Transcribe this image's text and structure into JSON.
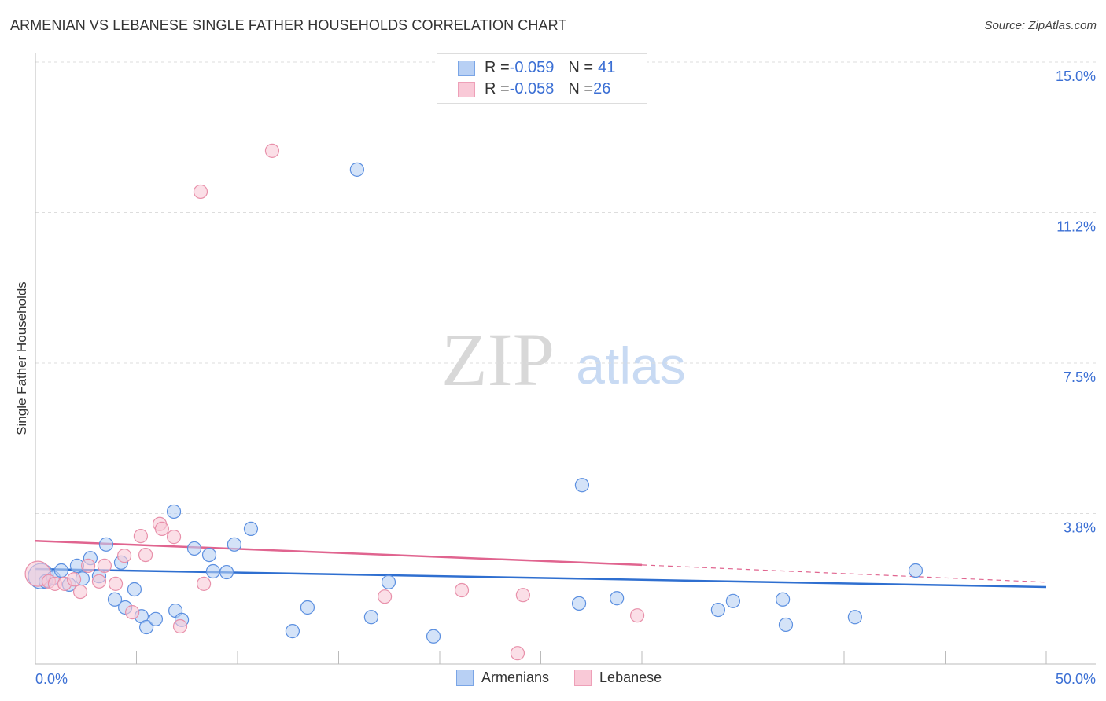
{
  "title": "ARMENIAN VS LEBANESE SINGLE FATHER HOUSEHOLDS CORRELATION CHART",
  "source": "Source: ZipAtlas.com",
  "watermark": {
    "zip": "ZIP",
    "atlas": "atlas"
  },
  "legend": [
    {
      "r_label": "R = ",
      "r": "-0.059",
      "n_label": "N = ",
      "n": "41"
    },
    {
      "r_label": "R = ",
      "r": "-0.058",
      "n_label": "N = ",
      "n": "26"
    }
  ],
  "chart_data": {
    "type": "scatter",
    "title": "ARMENIAN VS LEBANESE SINGLE FATHER HOUSEHOLDS CORRELATION CHART",
    "xlabel": "",
    "ylabel": "Single Father Households",
    "xlim": [
      0,
      50
    ],
    "ylim": [
      0,
      15
    ],
    "x_tick_labels": [
      "0.0%",
      "50.0%"
    ],
    "y_ticks": [
      15,
      11.25,
      7.5,
      3.75
    ],
    "y_tick_labels": [
      "15.0%",
      "11.2%",
      "7.5%",
      "3.8%"
    ],
    "grid": true,
    "series": [
      {
        "name": "Armenians",
        "color": "#5b8fe0",
        "fill": "#b8d0f4",
        "trend": [
          [
            0,
            2.37
          ],
          [
            50,
            1.92
          ]
        ],
        "points": [
          [
            0.27,
            2.19
          ],
          [
            0.51,
            2.06
          ],
          [
            0.89,
            2.15
          ],
          [
            1.28,
            2.33
          ],
          [
            1.67,
            1.98
          ],
          [
            2.06,
            2.45
          ],
          [
            2.33,
            2.13
          ],
          [
            2.72,
            2.64
          ],
          [
            3.15,
            2.19
          ],
          [
            3.5,
            2.98
          ],
          [
            3.93,
            1.61
          ],
          [
            4.24,
            2.53
          ],
          [
            4.44,
            1.41
          ],
          [
            4.9,
            1.86
          ],
          [
            5.25,
            1.19
          ],
          [
            5.49,
            0.92
          ],
          [
            5.95,
            1.12
          ],
          [
            6.85,
            3.8
          ],
          [
            6.93,
            1.33
          ],
          [
            7.24,
            1.1
          ],
          [
            7.86,
            2.88
          ],
          [
            8.6,
            2.72
          ],
          [
            8.79,
            2.31
          ],
          [
            9.46,
            2.29
          ],
          [
            9.84,
            2.98
          ],
          [
            10.66,
            3.37
          ],
          [
            12.72,
            0.82
          ],
          [
            13.46,
            1.41
          ],
          [
            15.91,
            12.32
          ],
          [
            16.61,
            1.17
          ],
          [
            17.47,
            2.04
          ],
          [
            19.69,
            0.69
          ],
          [
            26.89,
            1.51
          ],
          [
            27.04,
            4.46
          ],
          [
            28.76,
            1.64
          ],
          [
            33.77,
            1.35
          ],
          [
            34.51,
            1.57
          ],
          [
            36.97,
            1.61
          ],
          [
            37.12,
            0.98
          ],
          [
            40.54,
            1.17
          ],
          [
            43.54,
            2.33
          ]
        ]
      },
      {
        "name": "Lebanese",
        "color": "#e890aa",
        "fill": "#f9c9d7",
        "trend": [
          [
            0,
            3.07
          ],
          [
            30,
            2.47
          ]
        ],
        "trend_dashed": [
          [
            30,
            2.47
          ],
          [
            50,
            2.04
          ]
        ],
        "points": [
          [
            0.12,
            2.25
          ],
          [
            0.66,
            2.06
          ],
          [
            0.97,
            2.0
          ],
          [
            1.44,
            2.0
          ],
          [
            1.91,
            2.11
          ],
          [
            2.22,
            1.8
          ],
          [
            2.61,
            2.45
          ],
          [
            3.15,
            2.06
          ],
          [
            3.42,
            2.45
          ],
          [
            3.97,
            2.0
          ],
          [
            4.4,
            2.7
          ],
          [
            4.79,
            1.29
          ],
          [
            5.21,
            3.19
          ],
          [
            5.45,
            2.72
          ],
          [
            6.15,
            3.49
          ],
          [
            6.26,
            3.37
          ],
          [
            6.85,
            3.17
          ],
          [
            7.16,
            0.94
          ],
          [
            8.17,
            11.77
          ],
          [
            8.33,
            2.0
          ],
          [
            11.71,
            12.79
          ],
          [
            17.28,
            1.68
          ],
          [
            21.09,
            1.84
          ],
          [
            23.85,
            0.27
          ],
          [
            24.12,
            1.72
          ],
          [
            29.77,
            1.21
          ]
        ]
      }
    ]
  }
}
